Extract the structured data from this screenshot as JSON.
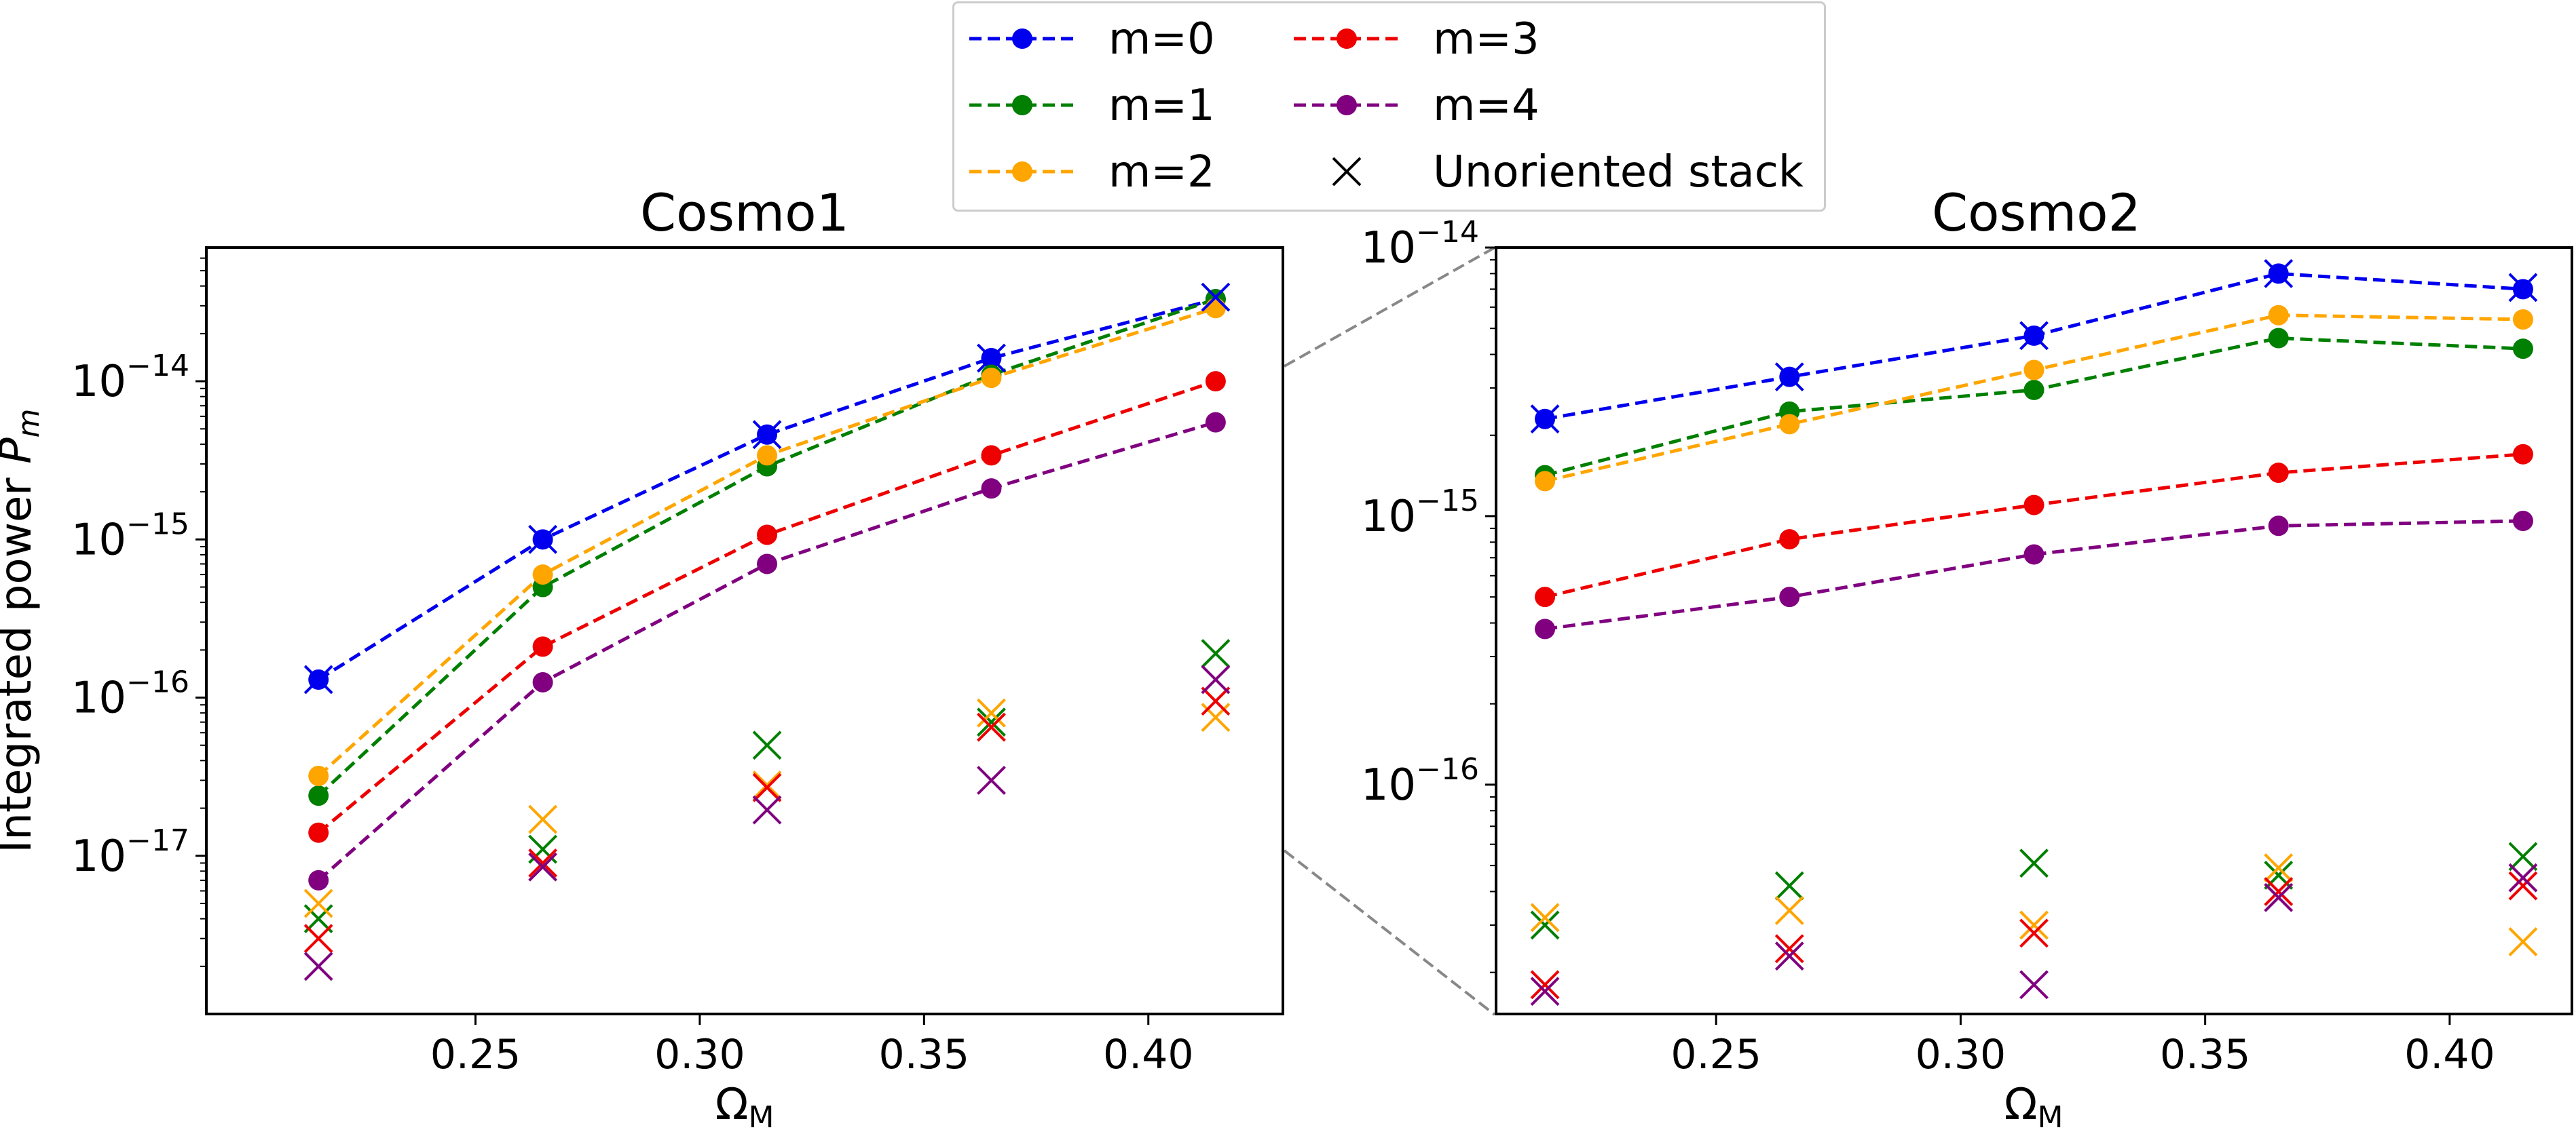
{
  "colors": {
    "m0": "#0000ee",
    "m1": "#007f00",
    "m2": "#ffa500",
    "m3": "#ee0000",
    "m4": "#800080",
    "connector": "#888888"
  },
  "legend": {
    "location": "top-center",
    "entries": [
      {
        "label": "m=0",
        "color": "#0000ee",
        "style": "dashed line with circle"
      },
      {
        "label": "m=1",
        "color": "#007f00",
        "style": "dashed line with circle"
      },
      {
        "label": "m=2",
        "color": "#ffa500",
        "style": "dashed line with circle"
      },
      {
        "label": "m=3",
        "color": "#ee0000",
        "style": "dashed line with circle"
      },
      {
        "label": "m=4",
        "color": "#800080",
        "style": "dashed line with circle"
      },
      {
        "label": "Unoriented stack",
        "color": "#000000",
        "style": "x marker"
      }
    ]
  },
  "chart_data": [
    {
      "type": "line",
      "title": "Cosmo1",
      "xlabel": "Ω_M",
      "ylabel": "Integrated power P_m",
      "yscale": "log",
      "xlim": [
        0.19,
        0.43
      ],
      "ylim": [
        1e-18,
        7e-14
      ],
      "xticks": [
        "0.25",
        "0.30",
        "0.35",
        "0.40"
      ],
      "yticks": [
        "10^-17",
        "10^-16",
        "10^-15",
        "10^-14"
      ],
      "x": [
        0.215,
        0.265,
        0.315,
        0.365,
        0.415
      ],
      "series": [
        {
          "name": "m=0",
          "values": [
            1.3e-16,
            1e-15,
            4.6e-15,
            1.4e-14,
            3.3e-14
          ]
        },
        {
          "name": "m=1",
          "values": [
            2.4e-17,
            5e-16,
            2.9e-15,
            1.1e-14,
            3.3e-14
          ]
        },
        {
          "name": "m=2",
          "values": [
            3.2e-17,
            6e-16,
            3.4e-15,
            1.05e-14,
            2.9e-14
          ]
        },
        {
          "name": "m=3",
          "values": [
            1.4e-17,
            2.1e-16,
            1.07e-15,
            3.4e-15,
            1e-14
          ]
        },
        {
          "name": "m=4",
          "values": [
            7e-18,
            1.25e-16,
            7e-16,
            2.1e-15,
            5.5e-15
          ]
        }
      ],
      "unoriented_stack": [
        {
          "name": "m=0",
          "values": [
            1.3e-16,
            1e-15,
            4.6e-15,
            1.4e-14,
            3.4e-14
          ]
        },
        {
          "name": "m=1",
          "values": [
            4e-18,
            1.1e-17,
            5e-17,
            7e-17,
            1.9e-16
          ]
        },
        {
          "name": "m=2",
          "values": [
            5e-18,
            1.7e-17,
            2.8e-17,
            8e-17,
            7.5e-17
          ]
        },
        {
          "name": "m=3",
          "values": [
            3e-18,
            9e-18,
            2.7e-17,
            6.5e-17,
            9.5e-17
          ]
        },
        {
          "name": "m=4",
          "values": [
            2e-18,
            8.5e-18,
            1.95e-17,
            3e-17,
            1.3e-16
          ]
        }
      ]
    },
    {
      "type": "line",
      "title": "Cosmo2",
      "xlabel": "Ω_M",
      "ylabel": "",
      "yscale": "log",
      "xlim": [
        0.205,
        0.425
      ],
      "ylim": [
        1.4e-17,
        1e-14
      ],
      "xticks": [
        "0.25",
        "0.30",
        "0.35",
        "0.40"
      ],
      "yticks": [
        "10^-16",
        "10^-15",
        "10^-14"
      ],
      "x": [
        0.215,
        0.265,
        0.315,
        0.365,
        0.415
      ],
      "series": [
        {
          "name": "m=0",
          "values": [
            2.3e-15,
            3.3e-15,
            4.7e-15,
            8e-15,
            7e-15
          ]
        },
        {
          "name": "m=1",
          "values": [
            1.42e-15,
            2.45e-15,
            2.95e-15,
            4.6e-15,
            4.2e-15
          ]
        },
        {
          "name": "m=2",
          "values": [
            1.35e-15,
            2.2e-15,
            3.5e-15,
            5.6e-15,
            5.4e-15
          ]
        },
        {
          "name": "m=3",
          "values": [
            5e-16,
            8.2e-16,
            1.1e-15,
            1.45e-15,
            1.7e-15
          ]
        },
        {
          "name": "m=4",
          "values": [
            3.8e-16,
            5e-16,
            7.2e-16,
            9.2e-16,
            9.6e-16
          ]
        }
      ],
      "unoriented_stack": [
        {
          "name": "m=0",
          "values": [
            2.3e-15,
            3.3e-15,
            4.7e-15,
            8e-15,
            7.1e-15
          ]
        },
        {
          "name": "m=1",
          "values": [
            3e-17,
            4.2e-17,
            5.1e-17,
            4.6e-17,
            5.4e-17
          ]
        },
        {
          "name": "m=2",
          "values": [
            3.2e-17,
            3.4e-17,
            3e-17,
            4.9e-17,
            2.6e-17
          ]
        },
        {
          "name": "m=3",
          "values": [
            1.8e-17,
            2.45e-17,
            2.8e-17,
            4e-17,
            4.2e-17
          ]
        },
        {
          "name": "m=4",
          "values": [
            1.7e-17,
            2.3e-17,
            1.8e-17,
            3.8e-17,
            4.5e-17
          ]
        }
      ]
    }
  ]
}
